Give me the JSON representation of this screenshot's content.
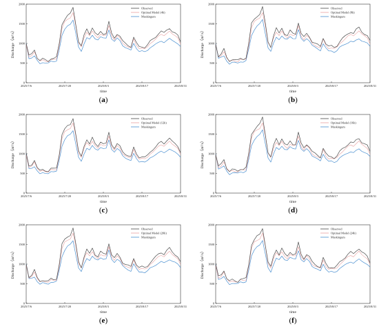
{
  "figure": {
    "x_title": "time",
    "y_title": "Discharge（m³/s）"
  },
  "chart_data": [
    {
      "type": "line",
      "panel_label": "a",
      "x_ticks": [
        "2025/7/6",
        "2025/7/20",
        "2025/8/3",
        "2025/8/17",
        "2025/8/31"
      ],
      "y_ticks": [
        "0",
        "500",
        "1000",
        "1500",
        "2000"
      ],
      "ylim": [
        0,
        2000
      ],
      "xlim_days": [
        0,
        56
      ],
      "xlabel": "time",
      "ylabel": "Discharge（m³/s）",
      "legend_position": "top-right",
      "series": [
        {
          "name": "Observed",
          "color": "#4a4a4a"
        },
        {
          "name": "Optimal Model (4h)",
          "color": "#e8a0a0"
        },
        {
          "name": "Muskingum",
          "color": "#4a8fd0"
        }
      ]
    },
    {
      "type": "line",
      "panel_label": "b",
      "x_ticks": [
        "2025/7/6",
        "2025/7/20",
        "2025/8/3",
        "2025/8/17",
        "2025/8/31"
      ],
      "y_ticks": [
        "0",
        "500",
        "1000",
        "1500",
        "2000"
      ],
      "ylim": [
        0,
        2000
      ],
      "xlim_days": [
        0,
        56
      ],
      "xlabel": "time",
      "ylabel": "Discharge（m³/s）",
      "legend_position": "top-right",
      "series": [
        {
          "name": "Observed",
          "color": "#4a4a4a"
        },
        {
          "name": "Optimal Model (8h)",
          "color": "#e8a0a0"
        },
        {
          "name": "Muskingum",
          "color": "#4a8fd0"
        }
      ]
    },
    {
      "type": "line",
      "panel_label": "c",
      "x_ticks": [
        "2025/7/6",
        "2025/7/20",
        "2025/8/3",
        "2025/8/17",
        "2025/8/31"
      ],
      "y_ticks": [
        "0",
        "500",
        "1000",
        "1500",
        "2000"
      ],
      "ylim": [
        0,
        2000
      ],
      "xlim_days": [
        0,
        56
      ],
      "xlabel": "time",
      "ylabel": "Discharge（m³/s）",
      "legend_position": "top-right",
      "series": [
        {
          "name": "Observed",
          "color": "#4a4a4a"
        },
        {
          "name": "Optimal Model (12h)",
          "color": "#e8a0a0"
        },
        {
          "name": "Muskingum",
          "color": "#4a8fd0"
        }
      ]
    },
    {
      "type": "line",
      "panel_label": "d",
      "x_ticks": [
        "2025/7/6",
        "2025/7/20",
        "2025/8/3",
        "2025/8/17",
        "2025/8/31"
      ],
      "y_ticks": [
        "0",
        "500",
        "1000",
        "1500",
        "2000"
      ],
      "ylim": [
        0,
        2000
      ],
      "xlim_days": [
        0,
        56
      ],
      "xlabel": "time",
      "ylabel": "Discharge（m³/s）",
      "legend_position": "top-right",
      "series": [
        {
          "name": "Observed",
          "color": "#4a4a4a"
        },
        {
          "name": "Optimal Model (16h)",
          "color": "#e8a0a0"
        },
        {
          "name": "Muskingum",
          "color": "#4a8fd0"
        }
      ]
    },
    {
      "type": "line",
      "panel_label": "e",
      "x_ticks": [
        "2025/7/6",
        "2025/7/20",
        "2025/8/3",
        "2025/8/17",
        "2025/8/31"
      ],
      "y_ticks": [
        "0",
        "500",
        "1000",
        "1500",
        "2000"
      ],
      "ylim": [
        0,
        2000
      ],
      "xlim_days": [
        0,
        56
      ],
      "xlabel": "time",
      "ylabel": "Discharge（m³/s）",
      "legend_position": "top-right",
      "series": [
        {
          "name": "Observed",
          "color": "#4a4a4a"
        },
        {
          "name": "Optimal Model (20h)",
          "color": "#e8a0a0"
        },
        {
          "name": "Muskingum",
          "color": "#4a8fd0"
        }
      ]
    },
    {
      "type": "line",
      "panel_label": "f",
      "x_ticks": [
        "2025/7/6",
        "2025/7/20",
        "2025/8/3",
        "2025/8/17",
        "2025/8/31"
      ],
      "y_ticks": [
        "0",
        "500",
        "1000",
        "1500",
        "2000"
      ],
      "ylim": [
        0,
        2000
      ],
      "xlim_days": [
        0,
        56
      ],
      "xlabel": "time",
      "ylabel": "Discharge（m³/s）",
      "legend_position": "top-right",
      "series": [
        {
          "name": "Observed",
          "color": "#4a4a4a"
        },
        {
          "name": "Optimal Model (24h)",
          "color": "#e8a0a0"
        },
        {
          "name": "Muskingum",
          "color": "#4a8fd0"
        }
      ]
    }
  ],
  "series_values": {
    "x_days": [
      0,
      1,
      2,
      3,
      4,
      5,
      6,
      7,
      8,
      9,
      10,
      11,
      12,
      13,
      14,
      15,
      16,
      17,
      18,
      19,
      20,
      21,
      22,
      23,
      24,
      25,
      26,
      27,
      28,
      29,
      30,
      31,
      32,
      33,
      34,
      35,
      36,
      37,
      38,
      39,
      40,
      41,
      42,
      43,
      44,
      45,
      46,
      47,
      48,
      49,
      50,
      51,
      52,
      53,
      54,
      55,
      56
    ],
    "observed": [
      1000,
      680,
      730,
      850,
      640,
      560,
      600,
      580,
      560,
      620,
      610,
      640,
      1000,
      1500,
      1620,
      1700,
      1750,
      1920,
      1500,
      1050,
      920,
      1200,
      1380,
      1250,
      1400,
      1250,
      1200,
      1320,
      1250,
      1250,
      1540,
      1250,
      1150,
      1250,
      1180,
      1050,
      1000,
      960,
      920,
      1150,
      1000,
      920,
      930,
      900,
      950,
      1050,
      1120,
      1180,
      1250,
      1300,
      1260,
      1350,
      1400,
      1300,
      1250,
      1200,
      1050
    ],
    "optimal": [
      950,
      650,
      700,
      800,
      620,
      540,
      580,
      560,
      540,
      590,
      580,
      600,
      950,
      1400,
      1550,
      1600,
      1650,
      1800,
      1450,
      1000,
      900,
      1150,
      1300,
      1200,
      1300,
      1200,
      1150,
      1250,
      1200,
      1200,
      1450,
      1200,
      1100,
      1200,
      1130,
      1000,
      960,
      920,
      880,
      1100,
      950,
      880,
      890,
      860,
      900,
      1000,
      1060,
      1120,
      1180,
      1220,
      1200,
      1270,
      1320,
      1230,
      1190,
      1150,
      1000
    ],
    "muskingum": [
      1000,
      620,
      640,
      680,
      560,
      480,
      520,
      510,
      500,
      540,
      530,
      560,
      850,
      1200,
      1350,
      1450,
      1500,
      1600,
      1250,
      900,
      800,
      1000,
      1150,
      1100,
      1200,
      1120,
      1100,
      1170,
      1130,
      1130,
      1350,
      1120,
      1050,
      1130,
      1070,
      950,
      900,
      860,
      820,
      1000,
      880,
      800,
      810,
      780,
      820,
      900,
      940,
      980,
      1020,
      1060,
      1030,
      1080,
      1120,
      1070,
      1040,
      1000,
      920
    ]
  }
}
